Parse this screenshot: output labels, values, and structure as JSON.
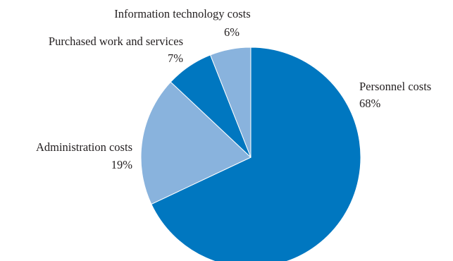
{
  "chart_data": {
    "type": "pie",
    "title": "",
    "unit": "%",
    "start_angle_deg": 0,
    "direction": "clockwise",
    "slices": [
      {
        "name": "Personnel costs",
        "value": 68,
        "label": "68%",
        "color": "#0077c0"
      },
      {
        "name": "Administration costs",
        "value": 19,
        "label": "19%",
        "color": "#89b3dd"
      },
      {
        "name": "Purchased work and services",
        "value": 7,
        "label": "7%",
        "color": "#0077c0"
      },
      {
        "name": "Information technology costs",
        "value": 6,
        "label": "6%",
        "color": "#89b3dd"
      }
    ],
    "legend": "none",
    "label_placement": "outside"
  }
}
